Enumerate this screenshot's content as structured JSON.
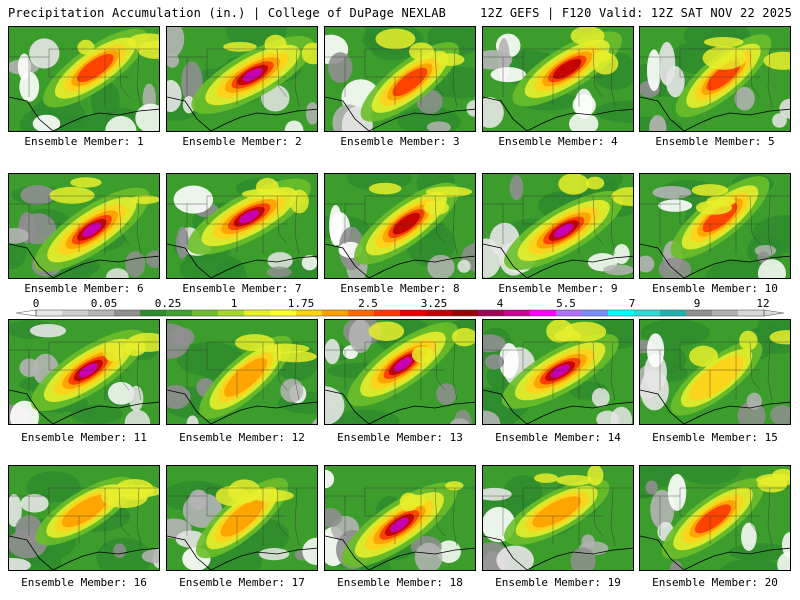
{
  "header": {
    "left": "Precipitation Accumulation (in.) | College of DuPage NEXLAB",
    "right": "12Z GEFS | F120 Valid: 12Z SAT NOV 22 2025"
  },
  "colorbar": {
    "labels": [
      "0",
      "0.05",
      "0.25",
      "1",
      "1.75",
      "2.5",
      "3.25",
      "4",
      "5.5",
      "7",
      "9",
      "12"
    ],
    "colors": [
      "#e6e6e6",
      "#cfcfcf",
      "#b4b4b4",
      "#8f8f8f",
      "#2e8b2e",
      "#3fa02f",
      "#6cbf2a",
      "#a6d92e",
      "#e6ef2c",
      "#ffff33",
      "#ffd21a",
      "#ffa000",
      "#ff6a00",
      "#ff3a00",
      "#e60000",
      "#c00000",
      "#9a0000",
      "#a0005a",
      "#c80096",
      "#ff00ff",
      "#b070ff",
      "#7a8cff",
      "#00ffff",
      "#30d8d8",
      "#20b0b0",
      "#909090",
      "#b0b0b0",
      "#d8d8d8"
    ]
  },
  "members": [
    {
      "label": "Ensemble Member: 1",
      "intensity": 0.55
    },
    {
      "label": "Ensemble Member: 2",
      "intensity": 0.9
    },
    {
      "label": "Ensemble Member: 3",
      "intensity": 0.45
    },
    {
      "label": "Ensemble Member: 4",
      "intensity": 0.6
    },
    {
      "label": "Ensemble Member: 5",
      "intensity": 0.45
    },
    {
      "label": "Ensemble Member: 6",
      "intensity": 0.85
    },
    {
      "label": "Ensemble Member: 7",
      "intensity": 0.9
    },
    {
      "label": "Ensemble Member: 8",
      "intensity": 0.6
    },
    {
      "label": "Ensemble Member: 9",
      "intensity": 0.85
    },
    {
      "label": "Ensemble Member: 10",
      "intensity": 0.5
    },
    {
      "label": "Ensemble Member: 11",
      "intensity": 0.8
    },
    {
      "label": "Ensemble Member: 12",
      "intensity": 0.4
    },
    {
      "label": "Ensemble Member: 13",
      "intensity": 0.75
    },
    {
      "label": "Ensemble Member: 14",
      "intensity": 0.75
    },
    {
      "label": "Ensemble Member: 15",
      "intensity": 0.25
    },
    {
      "label": "Ensemble Member: 16",
      "intensity": 0.3
    },
    {
      "label": "Ensemble Member: 17",
      "intensity": 0.35
    },
    {
      "label": "Ensemble Member: 18",
      "intensity": 0.85
    },
    {
      "label": "Ensemble Member: 19",
      "intensity": 0.4
    },
    {
      "label": "Ensemble Member: 20",
      "intensity": 0.55
    }
  ]
}
